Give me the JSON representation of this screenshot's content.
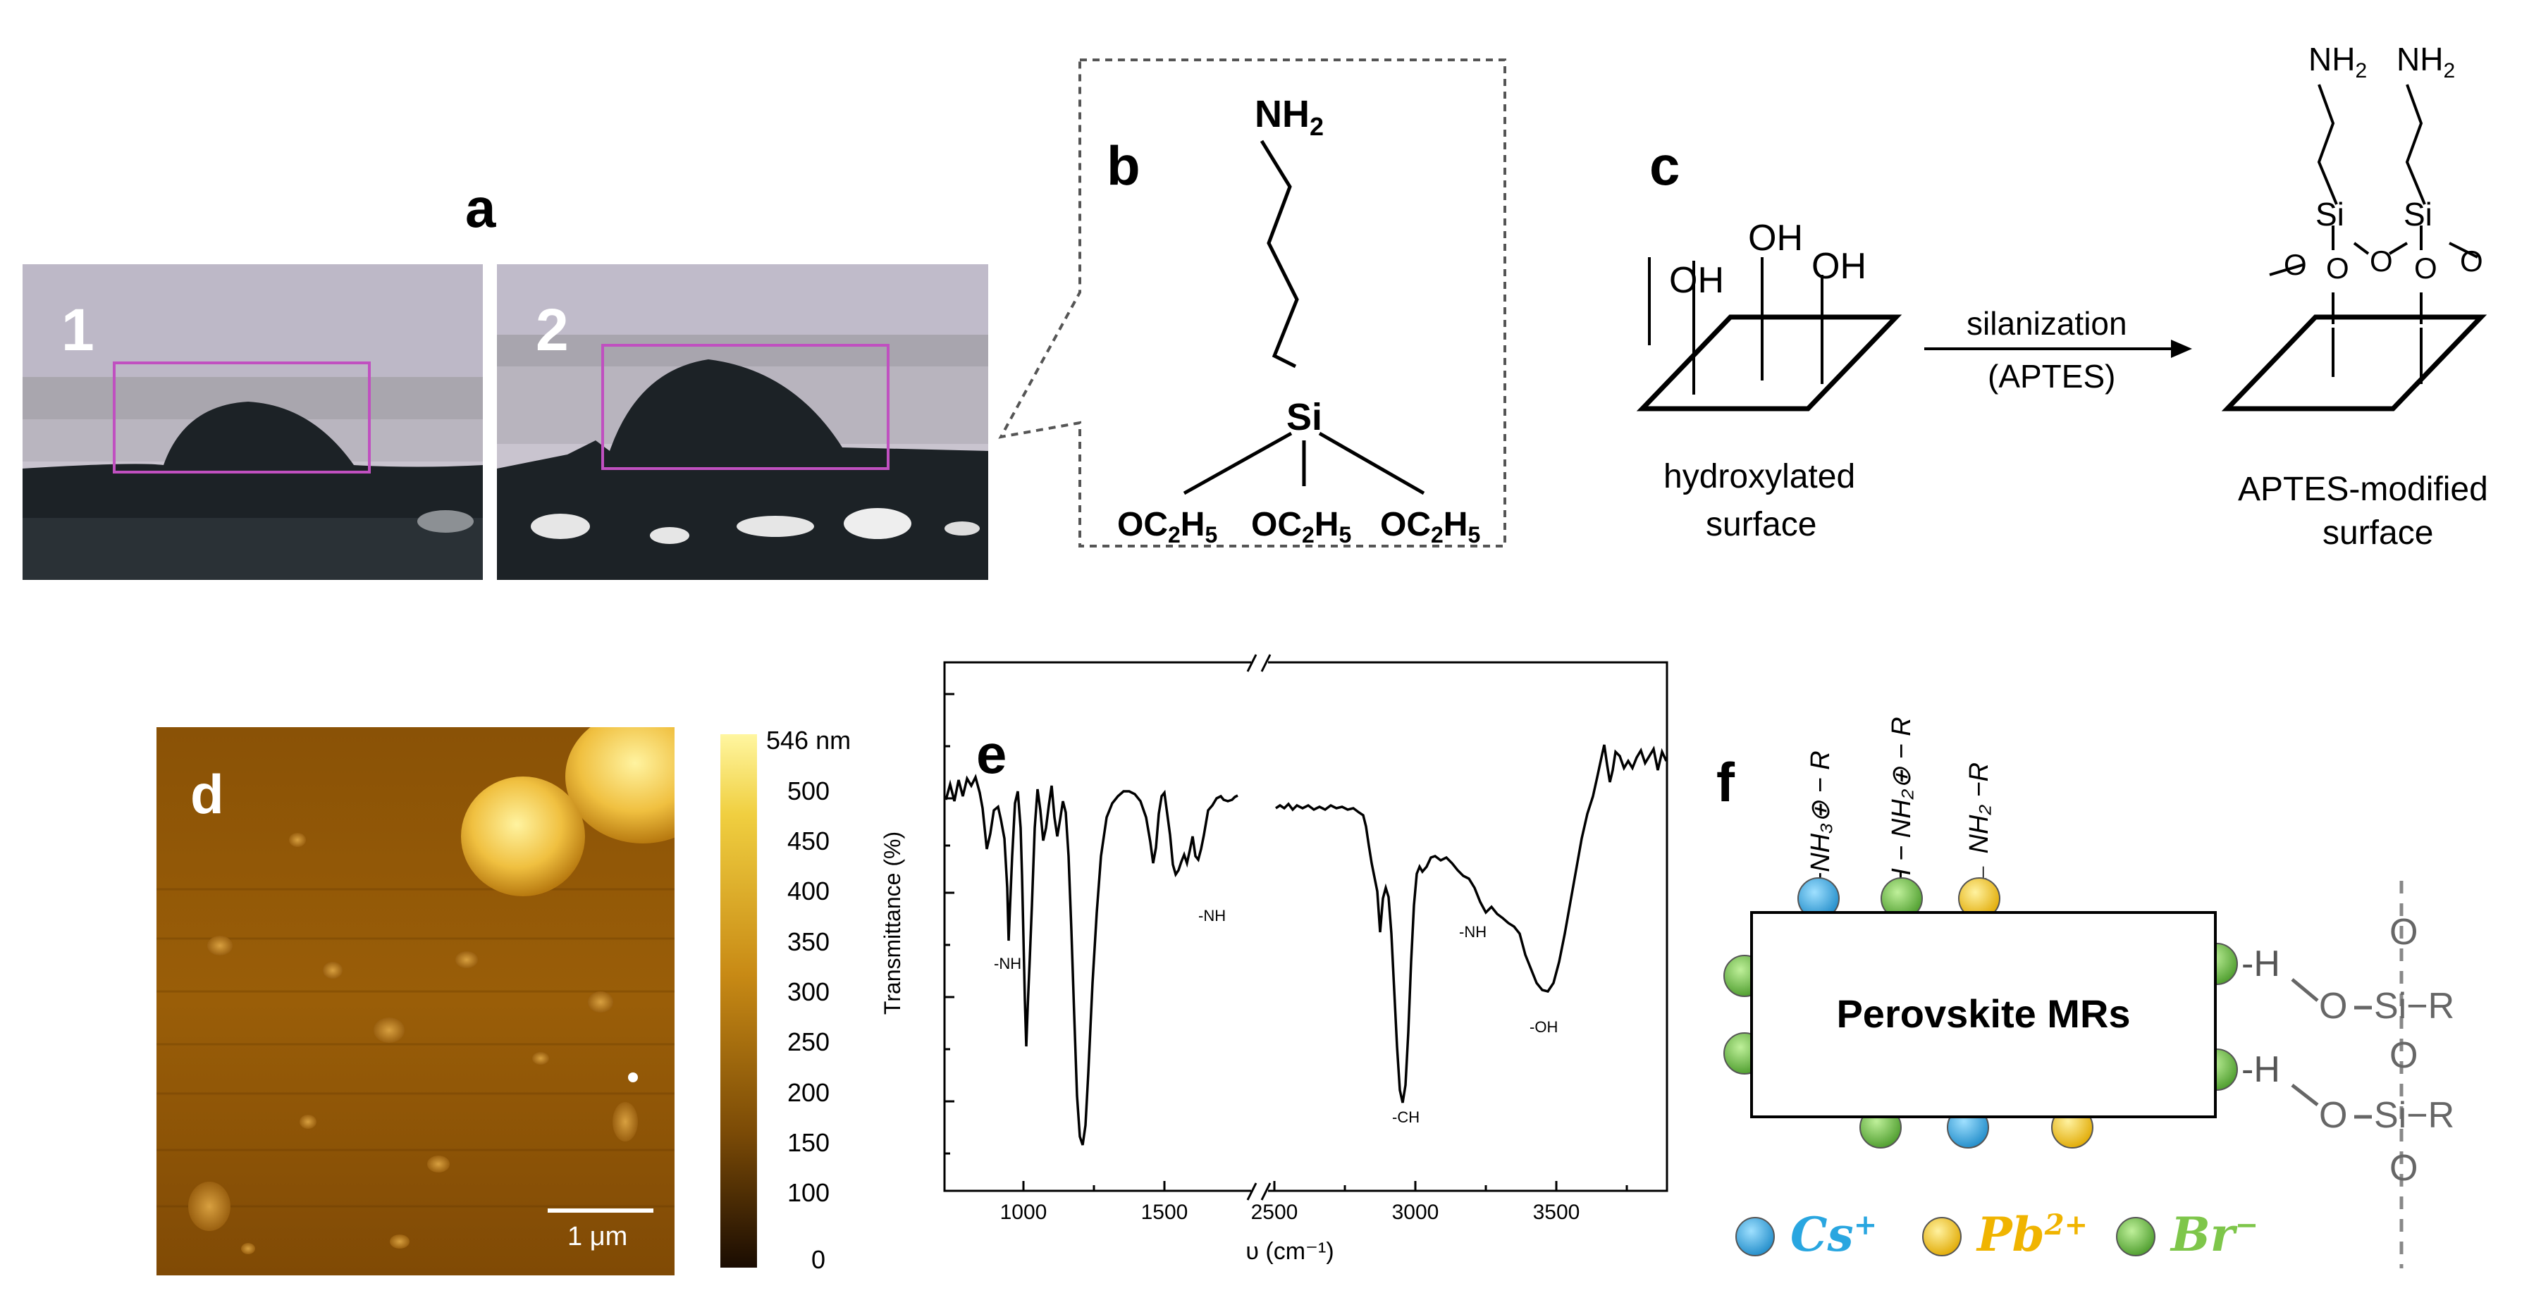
{
  "panel_a": {
    "letter": "a",
    "photo1_label": "1",
    "photo2_label": "2"
  },
  "panel_b": {
    "letter": "b",
    "amine": "NH",
    "amine_sub": "2",
    "silicon": "Si",
    "ethoxy_prefix": "OC",
    "ethoxy_sub1": "2",
    "ethoxy_H": "H",
    "ethoxy_sub2": "5"
  },
  "panel_c": {
    "letter": "c",
    "oh": "OH",
    "arrow_label_top": "silanization",
    "arrow_label_bottom": "(APTES)",
    "left_caption_1": "hydroxylated",
    "left_caption_2": "surface",
    "right_caption_1": "APTES-modified",
    "right_caption_2": "surface",
    "nh2": "NH",
    "nh2_sub": "2",
    "si": "Si",
    "o": "O"
  },
  "panel_d": {
    "letter": "d",
    "scale_bar_label": "1 μm",
    "colorbar_ticks": [
      "546 nm",
      "500",
      "450",
      "400",
      "350",
      "300",
      "250",
      "200",
      "150",
      "100",
      "0"
    ],
    "colors": {
      "low": "#1a0c02",
      "mid": "#a0650a",
      "high": "#fff6a0"
    }
  },
  "panel_e": {
    "letter": "e",
    "chart_data": {
      "type": "line",
      "xlabel": "υ (cm⁻¹)",
      "ylabel": "Transmittance (%)",
      "x_ticks": [
        "1000",
        "1500",
        "2500",
        "3000",
        "3500"
      ],
      "annotations": [
        "-NH",
        "-NH",
        "-CH",
        "-NH",
        "-OH"
      ]
    }
  },
  "panel_f": {
    "letter": "f",
    "box_label": "Perovskite MRs",
    "top_labels": [
      "−NH₃⊕ − R",
      "H − NH₂⊕ − R",
      "← NH₂ −R"
    ],
    "bond_h": "-H",
    "o": "O",
    "si_r": "Si−R",
    "legend": [
      {
        "symbol": "Cs",
        "sup": "+",
        "color": "#29a6e0"
      },
      {
        "symbol": "Pb",
        "sup": "2+",
        "color": "#f0b400"
      },
      {
        "symbol": "Br",
        "sup": "−",
        "color": "#7ec64a"
      }
    ],
    "colors": {
      "cs": "#29a6e0",
      "pb": "#f0c010",
      "br": "#6ab83c"
    }
  }
}
